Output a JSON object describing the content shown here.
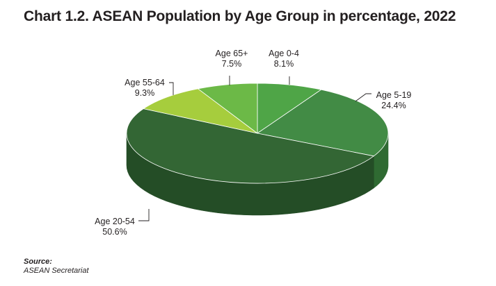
{
  "chart_data": {
    "type": "pie",
    "title": "Chart 1.2. ASEAN Population by Age Group in percentage, 2022",
    "start_category": "Age 0-4",
    "direction": "clockwise",
    "three_d": true,
    "legend": "none",
    "slices": [
      {
        "label": "Age 0-4",
        "value": 8.1,
        "display": "8.1%",
        "color": "#4fa547",
        "side_color": "#3a7d34"
      },
      {
        "label": "Age 5-19",
        "value": 24.4,
        "display": "24.4%",
        "color": "#428b45",
        "side_color": "#2f6a32"
      },
      {
        "label": "Age 20-54",
        "value": 50.6,
        "display": "50.6%",
        "color": "#336634",
        "side_color": "#244d26"
      },
      {
        "label": "Age 55-64",
        "value": 9.3,
        "display": "9.3%",
        "color": "#a6cd3d",
        "side_color": "#7f9f2c"
      },
      {
        "label": "Age 65+",
        "value": 7.5,
        "display": "7.5%",
        "color": "#6cb947",
        "side_color": "#518d35"
      }
    ]
  },
  "source": {
    "heading": "Source:",
    "text": "ASEAN Secretariat"
  }
}
